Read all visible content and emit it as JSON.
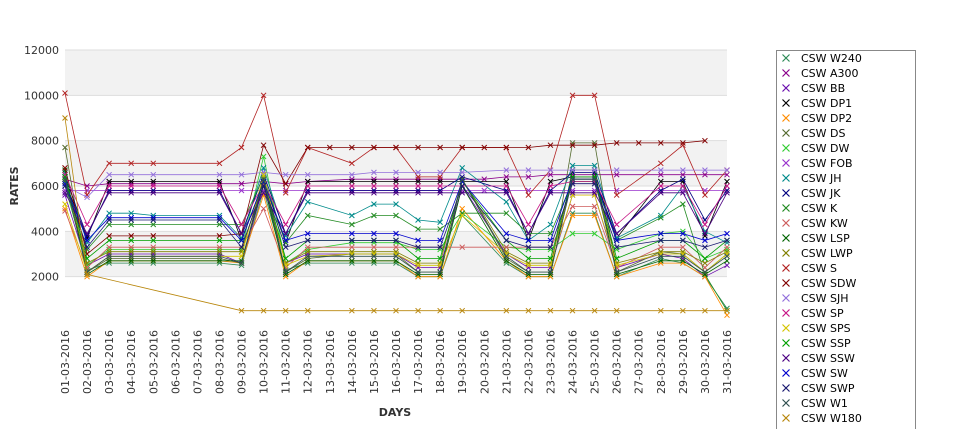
{
  "chart_data": {
    "type": "line",
    "xlabel": "DAYS",
    "ylabel": "RATES",
    "ylim": [
      0,
      12000
    ],
    "yticks": [
      2000,
      4000,
      6000,
      8000,
      10000,
      12000
    ],
    "grid": "horizontal alternating bands",
    "legend_position": "right",
    "x": [
      "01-03-2016",
      "02-03-2016",
      "03-03-2016",
      "04-03-2016",
      "05-03-2016",
      "06-03-2016",
      "07-03-2016",
      "08-03-2016",
      "09-03-2016",
      "10-03-2016",
      "11-03-2016",
      "12-03-2016",
      "13-03-2016",
      "14-03-2016",
      "15-03-2016",
      "16-03-2016",
      "17-03-2016",
      "18-03-2016",
      "19-03-2016",
      "20-03-2016",
      "21-03-2016",
      "22-03-2016",
      "23-03-2016",
      "24-03-2016",
      "25-03-2016",
      "26-03-2016",
      "27-03-2016",
      "28-03-2016",
      "29-03-2016",
      "30-03-2016",
      "31-03-2016"
    ],
    "series": [
      {
        "name": "CSW  W240",
        "color": "#2e8b57",
        "values": [
          6500,
          2300,
          2600,
          2600,
          2600,
          null,
          null,
          2600,
          2500,
          5800,
          2300,
          2600,
          null,
          2600,
          2600,
          2600,
          2000,
          2000,
          4700,
          null,
          2600,
          2000,
          2000,
          4800,
          4800,
          2000,
          null,
          2800,
          2600,
          2000,
          600
        ]
      },
      {
        "name": "CSW A300",
        "color": "#8b008b",
        "values": [
          6300,
          6000,
          6100,
          6100,
          6100,
          null,
          null,
          6100,
          6100,
          6200,
          6100,
          6200,
          null,
          6300,
          6300,
          6300,
          6300,
          6300,
          6300,
          6300,
          6400,
          6400,
          6500,
          6500,
          6500,
          6500,
          null,
          6500,
          6500,
          6500,
          6500
        ]
      },
      {
        "name": "CSW BB",
        "color": "#6a0dad",
        "values": [
          5600,
          2500,
          3000,
          3000,
          3000,
          null,
          null,
          3000,
          2600,
          6000,
          2600,
          3000,
          null,
          3000,
          3000,
          3000,
          2400,
          2400,
          6000,
          null,
          3000,
          2400,
          2400,
          5600,
          5600,
          2400,
          null,
          3000,
          2800,
          2000,
          2500
        ]
      },
      {
        "name": "CSW DP1",
        "color": "#000000",
        "values": [
          6200,
          3700,
          6200,
          6200,
          6200,
          null,
          null,
          6200,
          3600,
          6200,
          3500,
          6200,
          null,
          6200,
          6200,
          6200,
          6200,
          6200,
          6200,
          null,
          6200,
          3600,
          6200,
          6400,
          6400,
          3700,
          null,
          6200,
          6200,
          3800,
          6200
        ]
      },
      {
        "name": "CSW DP2",
        "color": "#ff8c00",
        "values": [
          5000,
          2000,
          2700,
          2700,
          2700,
          null,
          null,
          2700,
          2600,
          5600,
          2000,
          2700,
          null,
          2700,
          2700,
          2700,
          2000,
          2000,
          5000,
          null,
          2700,
          2000,
          2000,
          4700,
          4700,
          2000,
          null,
          2600,
          2600,
          2000,
          300
        ]
      },
      {
        "name": "CSW DS",
        "color": "#556b2f",
        "values": [
          7700,
          2200,
          2800,
          2800,
          2800,
          null,
          null,
          2800,
          2600,
          6400,
          2200,
          2800,
          null,
          3000,
          3000,
          3000,
          2200,
          2200,
          6300,
          null,
          2800,
          2200,
          2200,
          7900,
          7900,
          2200,
          null,
          3100,
          3000,
          2200,
          3000
        ]
      },
      {
        "name": "CSW DW",
        "color": "#32cd32",
        "values": [
          6000,
          2500,
          3200,
          3200,
          3200,
          null,
          null,
          3200,
          3200,
          7300,
          2600,
          3200,
          null,
          3500,
          3500,
          3500,
          3200,
          3200,
          4800,
          null,
          3300,
          3200,
          3200,
          3900,
          3900,
          3200,
          null,
          3900,
          4000,
          2800,
          3200
        ]
      },
      {
        "name": "CSW FOB",
        "color": "#9932cc",
        "values": [
          5800,
          5800,
          5800,
          5800,
          5800,
          null,
          null,
          5800,
          5800,
          5800,
          5800,
          5800,
          null,
          5800,
          5800,
          5800,
          5800,
          5800,
          5800,
          5800,
          5800,
          5800,
          5800,
          5800,
          5800,
          5800,
          null,
          5800,
          5800,
          5800,
          5800
        ]
      },
      {
        "name": "CSW JH",
        "color": "#008b8b",
        "values": [
          6600,
          3500,
          4800,
          4800,
          4700,
          null,
          null,
          4700,
          3700,
          6800,
          3800,
          5300,
          null,
          4700,
          5200,
          5200,
          4500,
          4400,
          6800,
          null,
          5300,
          3600,
          4300,
          6900,
          6900,
          3700,
          null,
          4700,
          6000,
          4000,
          3500
        ]
      },
      {
        "name": "CSW JK",
        "color": "#000080",
        "values": [
          6400,
          3800,
          5800,
          5800,
          5800,
          null,
          null,
          5800,
          3900,
          6500,
          3900,
          5800,
          null,
          5800,
          5800,
          5800,
          5800,
          5800,
          6400,
          null,
          5800,
          3900,
          5800,
          6600,
          6600,
          3900,
          null,
          5800,
          6300,
          4500,
          5800
        ]
      },
      {
        "name": "CSW K",
        "color": "#228b22",
        "values": [
          6200,
          3200,
          4300,
          4300,
          4300,
          null,
          null,
          4300,
          4300,
          6400,
          3500,
          4700,
          null,
          4300,
          4700,
          4700,
          4100,
          4100,
          4800,
          null,
          4800,
          3900,
          3900,
          6200,
          6200,
          3600,
          null,
          4600,
          5200,
          2100,
          500
        ]
      },
      {
        "name": "CSW KW",
        "color": "#cd5c5c",
        "values": [
          4900,
          2400,
          3300,
          3300,
          3300,
          null,
          null,
          3300,
          3300,
          5000,
          2400,
          3300,
          null,
          3300,
          3300,
          3300,
          3300,
          3300,
          3300,
          null,
          3300,
          3300,
          3300,
          5100,
          5100,
          2400,
          null,
          3300,
          3300,
          2400,
          3300
        ]
      },
      {
        "name": "CSW LSP",
        "color": "#006400",
        "values": [
          6700,
          2100,
          2700,
          2700,
          2700,
          null,
          null,
          2700,
          2700,
          6100,
          2100,
          2700,
          null,
          2700,
          2700,
          2700,
          2100,
          2100,
          6000,
          null,
          2700,
          2100,
          2100,
          6700,
          6700,
          2100,
          null,
          2700,
          2700,
          2100,
          2700
        ]
      },
      {
        "name": "CSW LWP",
        "color": "#808000",
        "values": [
          6300,
          2600,
          3100,
          3100,
          3100,
          null,
          null,
          3100,
          3100,
          6300,
          2600,
          3100,
          null,
          3100,
          3100,
          3100,
          2600,
          2600,
          6300,
          null,
          3100,
          2600,
          2600,
          6300,
          6300,
          2600,
          null,
          3100,
          3100,
          2600,
          3100
        ]
      },
      {
        "name": "CSW S",
        "color": "#b22222",
        "values": [
          10100,
          5600,
          7000,
          7000,
          7000,
          null,
          null,
          7000,
          7700,
          10000,
          5700,
          7700,
          null,
          7000,
          7700,
          7700,
          6400,
          6400,
          7700,
          null,
          7700,
          5600,
          6700,
          10000,
          10000,
          5600,
          null,
          7000,
          7800,
          5600,
          6700
        ]
      },
      {
        "name": "CSW SDW",
        "color": "#800000",
        "values": [
          6800,
          3000,
          3800,
          3800,
          3800,
          null,
          null,
          3800,
          3900,
          7800,
          6100,
          7700,
          7700,
          7700,
          7700,
          7700,
          7700,
          7700,
          7700,
          7700,
          7700,
          7700,
          7800,
          7800,
          7800,
          7900,
          7900,
          7900,
          7900,
          8000,
          null
        ]
      },
      {
        "name": "CSW SJH",
        "color": "#9370db",
        "values": [
          6000,
          5500,
          6500,
          6500,
          6500,
          null,
          null,
          6500,
          6500,
          6600,
          6500,
          6500,
          null,
          6500,
          6600,
          6600,
          6600,
          6600,
          6600,
          null,
          6700,
          6700,
          6700,
          6700,
          6700,
          6700,
          null,
          6700,
          6700,
          6700,
          6700
        ]
      },
      {
        "name": "CSW SP",
        "color": "#c71585",
        "values": [
          6500,
          4300,
          6000,
          6000,
          6000,
          null,
          null,
          6000,
          4300,
          6100,
          4300,
          6000,
          null,
          6000,
          6000,
          6000,
          6000,
          6000,
          6000,
          null,
          6000,
          4300,
          6000,
          6200,
          6200,
          4300,
          null,
          6000,
          6000,
          4300,
          6000
        ]
      },
      {
        "name": "CSW SPS",
        "color": "#d4c400",
        "values": [
          5200,
          2200,
          2900,
          2900,
          2900,
          null,
          null,
          2900,
          2900,
          6500,
          2500,
          2900,
          null,
          3000,
          3000,
          3000,
          2500,
          2500,
          4700,
          null,
          3000,
          2500,
          2500,
          5600,
          5600,
          2500,
          null,
          3000,
          3000,
          2200,
          3000
        ]
      },
      {
        "name": "CSW SSP",
        "color": "#00a000",
        "values": [
          6400,
          2800,
          3600,
          3600,
          3600,
          null,
          null,
          3600,
          3600,
          6200,
          2800,
          3600,
          null,
          3600,
          3600,
          3600,
          2800,
          2800,
          6200,
          null,
          3600,
          2800,
          2800,
          6400,
          6400,
          2800,
          null,
          3600,
          3600,
          2800,
          3600
        ]
      },
      {
        "name": "CSW SSW",
        "color": "#4b0082",
        "values": [
          5700,
          3900,
          5700,
          5700,
          5700,
          null,
          null,
          5700,
          3900,
          5700,
          3900,
          5700,
          null,
          5700,
          5700,
          5700,
          5700,
          5700,
          5700,
          null,
          5700,
          3900,
          5700,
          5700,
          5700,
          3900,
          null,
          5700,
          5700,
          3900,
          5700
        ]
      },
      {
        "name": "CSW SW",
        "color": "#0000cd",
        "values": [
          6100,
          3600,
          4600,
          4600,
          4600,
          null,
          null,
          4600,
          3600,
          6200,
          3600,
          3900,
          null,
          3900,
          3900,
          3900,
          3600,
          3600,
          6200,
          null,
          3900,
          3600,
          3600,
          6300,
          6300,
          3600,
          null,
          3900,
          3900,
          3600,
          3900
        ]
      },
      {
        "name": "CSW SWP",
        "color": "#191970",
        "values": [
          6000,
          3300,
          4500,
          4500,
          4500,
          null,
          null,
          4500,
          3300,
          6000,
          3300,
          3600,
          null,
          3600,
          3600,
          3600,
          3300,
          3300,
          6000,
          null,
          3600,
          3300,
          3300,
          6100,
          6100,
          3300,
          null,
          3600,
          3600,
          3300,
          3600
        ]
      },
      {
        "name": "CSW W1",
        "color": "#2f4f4f",
        "values": [
          6300,
          2200,
          2900,
          2900,
          2900,
          null,
          null,
          2900,
          2600,
          6300,
          2200,
          2900,
          null,
          2900,
          2900,
          2900,
          2200,
          2200,
          6300,
          null,
          2900,
          2200,
          2200,
          6300,
          6300,
          2200,
          null,
          2900,
          2900,
          2200,
          2900
        ]
      },
      {
        "name": "CSW W180",
        "color": "#b8860b",
        "values": [
          9000,
          2100,
          null,
          null,
          null,
          null,
          null,
          null,
          500,
          500,
          500,
          500,
          null,
          500,
          500,
          500,
          500,
          500,
          500,
          null,
          500,
          500,
          500,
          500,
          500,
          500,
          null,
          500,
          500,
          500,
          500
        ]
      }
    ]
  }
}
